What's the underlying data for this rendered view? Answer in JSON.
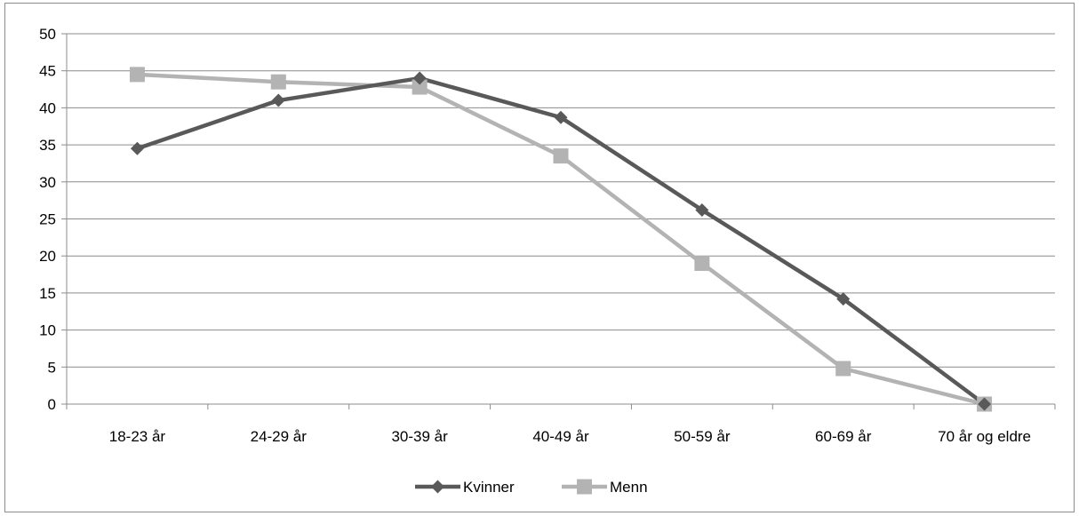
{
  "chart_data": {
    "type": "line",
    "categories": [
      "18-23 år",
      "24-29 år",
      "30-39 år",
      "40-49 år",
      "50-59 år",
      "60-69 år",
      "70 år og eldre"
    ],
    "series": [
      {
        "name": "Kvinner",
        "values": [
          34.5,
          41.0,
          44.0,
          38.7,
          26.2,
          14.2,
          0.0
        ],
        "color": "#595959",
        "marker": "diamond"
      },
      {
        "name": "Menn",
        "values": [
          44.5,
          43.5,
          42.8,
          33.5,
          19.0,
          4.8,
          0.0
        ],
        "color": "#b3b3b3",
        "marker": "square"
      }
    ],
    "ylim": [
      0,
      50
    ],
    "yticks": [
      0,
      5,
      10,
      15,
      20,
      25,
      30,
      35,
      40,
      45,
      50
    ],
    "grid": true,
    "legend": "bottom"
  }
}
